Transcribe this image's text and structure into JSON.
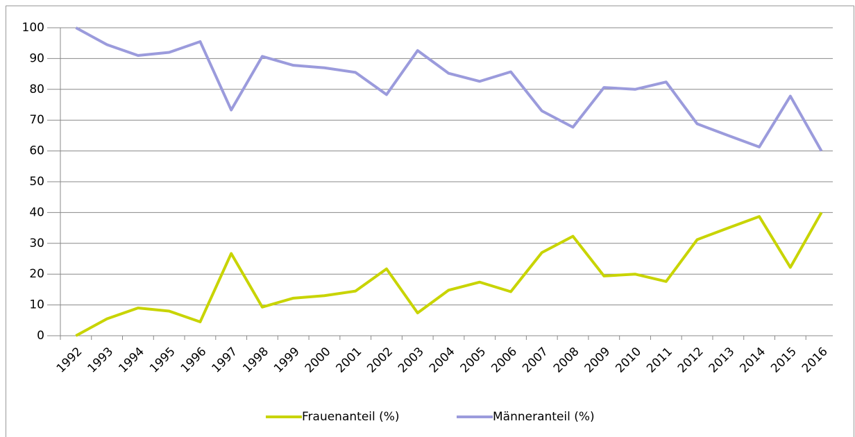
{
  "chart_data": {
    "type": "line",
    "categories": [
      "1992",
      "1993",
      "1994",
      "1995",
      "1996",
      "1997",
      "1998",
      "1999",
      "2000",
      "2001",
      "2002",
      "2003",
      "2004",
      "2005",
      "2006",
      "2007",
      "2008",
      "2009",
      "2010",
      "2011",
      "2012",
      "2013",
      "2014",
      "2015",
      "2016"
    ],
    "series": [
      {
        "name": "Frauenanteil (%)",
        "color": "#c8d400",
        "values": [
          0,
          5.5,
          9,
          8,
          4.5,
          26.7,
          9.3,
          12.2,
          13,
          14.5,
          21.7,
          7.4,
          14.8,
          17.4,
          14.3,
          27,
          32.3,
          19.4,
          20,
          17.6,
          31.2,
          35,
          38.7,
          22.2,
          40
        ]
      },
      {
        "name": "Männeranteil (%)",
        "color": "#9b9bdc",
        "values": [
          100,
          94.5,
          91,
          92,
          95.5,
          73.3,
          90.7,
          87.8,
          87,
          85.5,
          78.3,
          92.6,
          85.2,
          82.6,
          85.7,
          73,
          67.7,
          80.6,
          80,
          82.4,
          68.8,
          65,
          61.3,
          77.8,
          60
        ]
      }
    ],
    "ylim": [
      0,
      100
    ],
    "yticks": [
      0,
      10,
      20,
      30,
      40,
      50,
      60,
      70,
      80,
      90,
      100
    ],
    "grid": true,
    "legend": "bottom"
  }
}
